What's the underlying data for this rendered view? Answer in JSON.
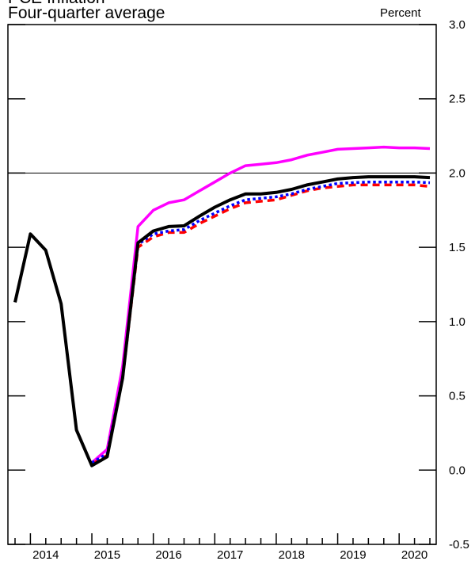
{
  "chart_data": {
    "type": "line",
    "title": "PCE Inflation",
    "subtitle": "Four-quarter average",
    "ylabel": "Percent",
    "ylim": [
      -0.5,
      3.0
    ],
    "yticks": [
      3.0,
      2.5,
      2.0,
      1.5,
      1.0,
      0.5,
      0.0,
      -0.5
    ],
    "ytick_labels": [
      "3.0",
      "2.5",
      "2.0",
      "1.5",
      "1.0",
      "0.5",
      "0.0",
      "-0.5"
    ],
    "x_start": 2013.75,
    "x_end": 2020.5,
    "xtick_labels": [
      "2014",
      "2015",
      "2016",
      "2017",
      "2018",
      "2019",
      "2020"
    ],
    "reference_line": 2.0,
    "grid": false,
    "legend": "none",
    "series": [
      {
        "color": "#ff00ff",
        "dash": "solid",
        "x": [
          2015.0,
          2015.25,
          2015.5,
          2015.75,
          2016.0,
          2016.25,
          2016.5,
          2016.75,
          2017.0,
          2017.25,
          2017.5,
          2017.75,
          2018.0,
          2018.25,
          2018.5,
          2018.75,
          2019.0,
          2019.25,
          2019.5,
          2019.75,
          2020.0,
          2020.25,
          2020.5
        ],
        "values": [
          0.05,
          0.14,
          0.7,
          1.64,
          1.75,
          1.8,
          1.82,
          1.88,
          1.94,
          2.0,
          2.05,
          2.06,
          2.07,
          2.09,
          2.12,
          2.14,
          2.16,
          2.165,
          2.17,
          2.175,
          2.17,
          2.17,
          2.165
        ]
      },
      {
        "color": "#ff0000",
        "dash": "dashed",
        "x": [
          2015.0,
          2015.25,
          2015.5,
          2015.75,
          2016.0,
          2016.25,
          2016.5,
          2016.75,
          2017.0,
          2017.25,
          2017.5,
          2017.75,
          2018.0,
          2018.25,
          2018.5,
          2018.75,
          2019.0,
          2019.25,
          2019.5,
          2019.75,
          2020.0,
          2020.25,
          2020.5
        ],
        "values": [
          0.04,
          0.1,
          0.62,
          1.5,
          1.57,
          1.6,
          1.6,
          1.66,
          1.71,
          1.76,
          1.8,
          1.81,
          1.82,
          1.85,
          1.88,
          1.9,
          1.91,
          1.92,
          1.92,
          1.92,
          1.92,
          1.92,
          1.91
        ]
      },
      {
        "color": "#0000ff",
        "dash": "dotted",
        "x": [
          2015.0,
          2015.25,
          2015.5,
          2015.75,
          2016.0,
          2016.25,
          2016.5,
          2016.75,
          2017.0,
          2017.25,
          2017.5,
          2017.75,
          2018.0,
          2018.25,
          2018.5,
          2018.75,
          2019.0,
          2019.25,
          2019.5,
          2019.75,
          2020.0,
          2020.25,
          2020.5
        ],
        "values": [
          0.05,
          0.11,
          0.63,
          1.52,
          1.59,
          1.61,
          1.62,
          1.68,
          1.73,
          1.78,
          1.82,
          1.83,
          1.84,
          1.86,
          1.89,
          1.91,
          1.93,
          1.935,
          1.94,
          1.94,
          1.94,
          1.94,
          1.935
        ]
      },
      {
        "color": "#000000",
        "dash": "solid",
        "x": [
          2013.75,
          2014.0,
          2014.25,
          2014.5,
          2014.75,
          2015.0,
          2015.25,
          2015.5,
          2015.75,
          2016.0,
          2016.25,
          2016.5,
          2016.75,
          2017.0,
          2017.25,
          2017.5,
          2017.75,
          2018.0,
          2018.25,
          2018.5,
          2018.75,
          2019.0,
          2019.25,
          2019.5,
          2019.75,
          2020.0,
          2020.25,
          2020.5
        ],
        "values": [
          1.13,
          1.59,
          1.48,
          1.12,
          0.27,
          0.03,
          0.09,
          0.62,
          1.53,
          1.61,
          1.64,
          1.645,
          1.71,
          1.77,
          1.82,
          1.86,
          1.86,
          1.87,
          1.89,
          1.92,
          1.94,
          1.96,
          1.97,
          1.975,
          1.975,
          1.975,
          1.975,
          1.97
        ]
      }
    ]
  }
}
